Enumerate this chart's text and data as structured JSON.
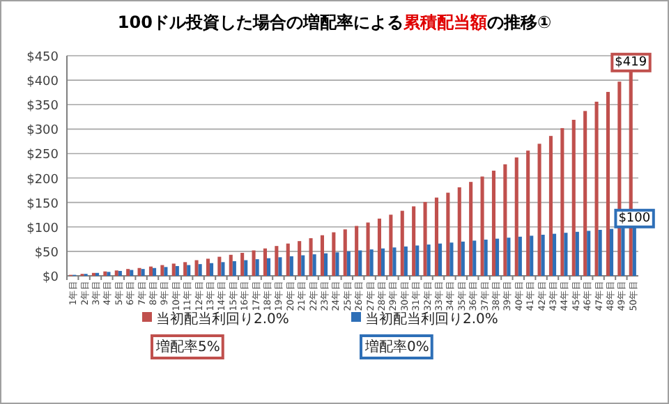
{
  "chart_data": {
    "type": "bar",
    "title": "100ドル投資した場合の増配率による**累積配当額**の推移①",
    "categories": [
      "1年目",
      "2年目",
      "3年目",
      "4年目",
      "5年目",
      "6年目",
      "7年目",
      "8年目",
      "9年目",
      "10年目",
      "11年目",
      "12年目",
      "13年目",
      "14年目",
      "15年目",
      "16年目",
      "17年目",
      "18年目",
      "19年目",
      "20年目",
      "21年目",
      "22年目",
      "23年目",
      "24年目",
      "25年目",
      "26年目",
      "27年目",
      "28年目",
      "29年目",
      "30年目",
      "31年目",
      "32年目",
      "33年目",
      "34年目",
      "35年目",
      "36年目",
      "37年目",
      "38年目",
      "39年目",
      "40年目",
      "41年目",
      "42年目",
      "43年目",
      "44年目",
      "45年目",
      "46年目",
      "47年目",
      "48年目",
      "49年目",
      "50年目"
    ],
    "series": [
      {
        "name": "当初配当利回り2.0%\n増配率5%",
        "color": "#c0504d",
        "values": [
          2,
          4,
          6,
          9,
          11,
          14,
          16,
          19,
          22,
          25,
          28,
          32,
          35,
          39,
          43,
          47,
          52,
          56,
          61,
          66,
          71,
          77,
          83,
          89,
          95,
          102,
          109,
          117,
          125,
          133,
          142,
          151,
          160,
          170,
          181,
          192,
          203,
          215,
          228,
          242,
          256,
          270,
          286,
          302,
          319,
          337,
          356,
          376,
          397,
          419
        ],
        "value_labels": [
          null,
          null,
          null,
          null,
          null,
          null,
          null,
          null,
          null,
          null,
          null,
          null,
          null,
          null,
          null,
          null,
          null,
          null,
          null,
          null,
          null,
          null,
          null,
          null,
          null,
          null,
          null,
          null,
          null,
          null,
          null,
          null,
          null,
          null,
          null,
          null,
          null,
          null,
          null,
          null,
          null,
          null,
          null,
          null,
          null,
          null,
          null,
          null,
          null,
          "$419"
        ]
      },
      {
        "name": "当初配当利回り2.0%\n増配率0%",
        "color": "#2e6fb7",
        "values": [
          2,
          4,
          6,
          8,
          10,
          12,
          14,
          16,
          18,
          20,
          22,
          24,
          26,
          28,
          30,
          32,
          34,
          36,
          38,
          40,
          42,
          44,
          46,
          48,
          50,
          52,
          54,
          56,
          58,
          60,
          62,
          64,
          66,
          68,
          70,
          72,
          74,
          76,
          78,
          80,
          82,
          84,
          86,
          88,
          90,
          92,
          94,
          96,
          98,
          100
        ],
        "value_labels": [
          null,
          null,
          null,
          null,
          null,
          null,
          null,
          null,
          null,
          null,
          null,
          null,
          null,
          null,
          null,
          null,
          null,
          null,
          null,
          null,
          null,
          null,
          null,
          null,
          null,
          null,
          null,
          null,
          null,
          null,
          null,
          null,
          null,
          null,
          null,
          null,
          null,
          null,
          null,
          null,
          null,
          null,
          null,
          null,
          null,
          null,
          null,
          null,
          null,
          "$100"
        ]
      }
    ],
    "ylim": [
      0,
      450
    ],
    "yticks": [
      {
        "value": 0,
        "label": "$0"
      },
      {
        "value": 50,
        "label": "$50"
      },
      {
        "value": 100,
        "label": "$100"
      },
      {
        "value": 150,
        "label": "$150"
      },
      {
        "value": 200,
        "label": "$200"
      },
      {
        "value": 250,
        "label": "$250"
      },
      {
        "value": 300,
        "label": "$300"
      },
      {
        "value": 350,
        "label": "$350"
      },
      {
        "value": 400,
        "label": "$400"
      },
      {
        "value": 450,
        "label": "$450"
      }
    ],
    "grid": "y",
    "legend": "bottom"
  }
}
